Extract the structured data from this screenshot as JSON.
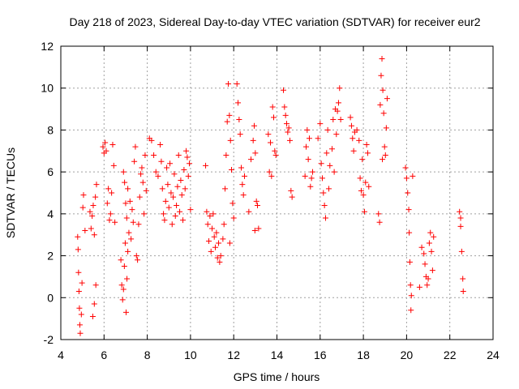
{
  "chart_data": {
    "type": "scatter",
    "title": "Day 218 of 2023, Sidereal Day-to-day VTEC variation (SDTVAR) for receiver eur2",
    "xlabel": "GPS time / hours",
    "ylabel": "SDTVAR / TECUs",
    "xlim": [
      4,
      24
    ],
    "ylim": [
      -2,
      12
    ],
    "xticks": [
      4,
      6,
      8,
      10,
      12,
      14,
      16,
      18,
      20,
      22,
      24
    ],
    "yticks": [
      -2,
      0,
      2,
      4,
      6,
      8,
      10,
      12
    ],
    "grid": true,
    "marker": "+",
    "color": "#ff0000",
    "series": [
      {
        "name": "SDTVAR",
        "points": [
          [
            4.78,
            2.9
          ],
          [
            4.8,
            2.3
          ],
          [
            4.82,
            1.2
          ],
          [
            4.84,
            0.3
          ],
          [
            4.86,
            -0.5
          ],
          [
            4.88,
            -1.3
          ],
          [
            4.9,
            -1.7
          ],
          [
            4.95,
            -0.8
          ],
          [
            4.98,
            0.7
          ],
          [
            5.02,
            4.3
          ],
          [
            5.05,
            4.9
          ],
          [
            5.12,
            3.2
          ],
          [
            5.35,
            4.1
          ],
          [
            5.4,
            3.3
          ],
          [
            5.45,
            3.9
          ],
          [
            5.5,
            4.4
          ],
          [
            5.55,
            3.0
          ],
          [
            5.6,
            4.8
          ],
          [
            5.65,
            5.4
          ],
          [
            5.48,
            -0.9
          ],
          [
            5.55,
            -0.3
          ],
          [
            5.62,
            0.6
          ],
          [
            5.95,
            7.2
          ],
          [
            6.0,
            6.9
          ],
          [
            6.05,
            7.4
          ],
          [
            6.1,
            7.0
          ],
          [
            6.15,
            4.5
          ],
          [
            6.2,
            5.2
          ],
          [
            6.25,
            3.7
          ],
          [
            6.3,
            4.0
          ],
          [
            6.35,
            5.0
          ],
          [
            6.4,
            7.3
          ],
          [
            6.45,
            6.3
          ],
          [
            6.5,
            3.6
          ],
          [
            6.78,
            1.8
          ],
          [
            6.82,
            0.6
          ],
          [
            6.86,
            -0.1
          ],
          [
            6.9,
            0.4
          ],
          [
            6.94,
            1.5
          ],
          [
            6.98,
            2.6
          ],
          [
            7.02,
            -0.7
          ],
          [
            7.06,
            0.9
          ],
          [
            7.1,
            2.2
          ],
          [
            6.9,
            6.0
          ],
          [
            6.95,
            5.5
          ],
          [
            7.0,
            4.5
          ],
          [
            7.05,
            3.8
          ],
          [
            7.1,
            5.2
          ],
          [
            7.15,
            3.1
          ],
          [
            7.2,
            4.6
          ],
          [
            7.25,
            2.8
          ],
          [
            7.3,
            4.2
          ],
          [
            7.35,
            3.6
          ],
          [
            7.4,
            6.5
          ],
          [
            7.45,
            7.2
          ],
          [
            7.5,
            2.0
          ],
          [
            7.55,
            1.8
          ],
          [
            7.6,
            3.5
          ],
          [
            7.65,
            4.8
          ],
          [
            7.7,
            5.9
          ],
          [
            7.75,
            6.2
          ],
          [
            7.8,
            5.5
          ],
          [
            7.85,
            4.0
          ],
          [
            7.9,
            6.8
          ],
          [
            7.95,
            5.1
          ],
          [
            8.1,
            7.6
          ],
          [
            8.2,
            7.5
          ],
          [
            8.3,
            6.8
          ],
          [
            8.4,
            6.0
          ],
          [
            8.5,
            5.8
          ],
          [
            8.6,
            7.3
          ],
          [
            8.65,
            6.5
          ],
          [
            8.7,
            5.2
          ],
          [
            8.75,
            4.0
          ],
          [
            8.8,
            3.7
          ],
          [
            8.85,
            4.6
          ],
          [
            8.9,
            6.2
          ],
          [
            8.95,
            5.4
          ],
          [
            9.0,
            4.3
          ],
          [
            9.05,
            6.4
          ],
          [
            9.1,
            5.0
          ],
          [
            9.15,
            3.5
          ],
          [
            9.2,
            4.8
          ],
          [
            9.25,
            5.9
          ],
          [
            9.3,
            3.9
          ],
          [
            9.35,
            4.4
          ],
          [
            9.4,
            5.3
          ],
          [
            9.45,
            6.8
          ],
          [
            9.5,
            4.1
          ],
          [
            9.55,
            5.6
          ],
          [
            9.6,
            4.9
          ],
          [
            9.65,
            3.7
          ],
          [
            9.7,
            6.1
          ],
          [
            9.75,
            5.2
          ],
          [
            9.8,
            7.0
          ],
          [
            9.85,
            6.7
          ],
          [
            9.9,
            5.8
          ],
          [
            9.95,
            6.4
          ],
          [
            10.0,
            4.2
          ],
          [
            10.7,
            6.3
          ],
          [
            10.75,
            4.1
          ],
          [
            10.8,
            3.5
          ],
          [
            10.85,
            2.7
          ],
          [
            10.9,
            3.9
          ],
          [
            10.95,
            2.2
          ],
          [
            11.0,
            3.3
          ],
          [
            11.05,
            4.0
          ],
          [
            11.1,
            2.9
          ],
          [
            11.15,
            2.4
          ],
          [
            11.2,
            3.1
          ],
          [
            11.25,
            1.9
          ],
          [
            11.3,
            2.6
          ],
          [
            11.35,
            1.7
          ],
          [
            11.4,
            2.0
          ],
          [
            11.5,
            2.8
          ],
          [
            11.55,
            3.5
          ],
          [
            11.6,
            5.2
          ],
          [
            11.65,
            6.8
          ],
          [
            11.7,
            8.4
          ],
          [
            11.75,
            10.2
          ],
          [
            11.8,
            8.7
          ],
          [
            11.85,
            7.5
          ],
          [
            11.9,
            6.1
          ],
          [
            11.95,
            4.5
          ],
          [
            12.0,
            3.8
          ],
          [
            11.82,
            2.6
          ],
          [
            12.15,
            10.2
          ],
          [
            12.2,
            9.3
          ],
          [
            12.25,
            8.5
          ],
          [
            12.3,
            7.8
          ],
          [
            12.35,
            6.2
          ],
          [
            12.4,
            5.4
          ],
          [
            12.45,
            4.9
          ],
          [
            12.5,
            5.8
          ],
          [
            12.7,
            4.1
          ],
          [
            12.8,
            6.6
          ],
          [
            12.9,
            7.5
          ],
          [
            12.95,
            8.2
          ],
          [
            13.0,
            6.9
          ],
          [
            13.05,
            4.6
          ],
          [
            13.1,
            4.4
          ],
          [
            13.15,
            3.3
          ],
          [
            12.98,
            3.2
          ],
          [
            13.6,
            7.8
          ],
          [
            13.65,
            6.0
          ],
          [
            13.7,
            7.4
          ],
          [
            13.75,
            5.8
          ],
          [
            13.8,
            9.1
          ],
          [
            13.85,
            8.6
          ],
          [
            13.9,
            7.0
          ],
          [
            13.95,
            6.8
          ],
          [
            14.3,
            9.9
          ],
          [
            14.35,
            9.1
          ],
          [
            14.4,
            8.7
          ],
          [
            14.45,
            8.3
          ],
          [
            14.5,
            7.9
          ],
          [
            14.55,
            8.1
          ],
          [
            14.6,
            7.5
          ],
          [
            14.65,
            5.1
          ],
          [
            14.7,
            4.8
          ],
          [
            15.3,
            5.8
          ],
          [
            15.35,
            7.2
          ],
          [
            15.4,
            8.0
          ],
          [
            15.45,
            6.6
          ],
          [
            15.5,
            7.6
          ],
          [
            15.55,
            5.3
          ],
          [
            15.6,
            5.7
          ],
          [
            15.65,
            6.0
          ],
          [
            15.9,
            7.6
          ],
          [
            16.0,
            8.3
          ],
          [
            16.05,
            6.4
          ],
          [
            16.1,
            5.7
          ],
          [
            16.15,
            5.0
          ],
          [
            16.2,
            4.4
          ],
          [
            16.25,
            3.8
          ],
          [
            16.3,
            6.9
          ],
          [
            16.35,
            8.0
          ],
          [
            16.4,
            5.2
          ],
          [
            16.45,
            6.3
          ],
          [
            16.55,
            7.1
          ],
          [
            16.6,
            8.5
          ],
          [
            16.65,
            6.0
          ],
          [
            16.7,
            9.0
          ],
          [
            16.75,
            7.8
          ],
          [
            16.8,
            8.9
          ],
          [
            16.85,
            9.3
          ],
          [
            16.9,
            10.0
          ],
          [
            16.95,
            8.5
          ],
          [
            17.4,
            8.6
          ],
          [
            17.45,
            8.2
          ],
          [
            17.5,
            7.6
          ],
          [
            17.55,
            7.0
          ],
          [
            17.6,
            7.9
          ],
          [
            17.7,
            8.0
          ],
          [
            17.8,
            7.5
          ],
          [
            17.85,
            5.7
          ],
          [
            17.9,
            5.1
          ],
          [
            17.95,
            6.6
          ],
          [
            18.0,
            4.9
          ],
          [
            18.05,
            4.1
          ],
          [
            18.1,
            5.5
          ],
          [
            18.15,
            7.3
          ],
          [
            18.2,
            6.9
          ],
          [
            18.25,
            5.3
          ],
          [
            18.7,
            4.0
          ],
          [
            18.75,
            3.6
          ],
          [
            18.78,
            9.2
          ],
          [
            18.82,
            10.6
          ],
          [
            18.86,
            11.4
          ],
          [
            18.9,
            9.9
          ],
          [
            18.94,
            8.8
          ],
          [
            18.98,
            7.2
          ],
          [
            19.02,
            6.8
          ],
          [
            19.06,
            8.1
          ],
          [
            19.1,
            9.5
          ],
          [
            18.88,
            6.6
          ],
          [
            19.95,
            6.2
          ],
          [
            20.0,
            5.7
          ],
          [
            20.05,
            5.0
          ],
          [
            20.1,
            4.2
          ],
          [
            20.12,
            3.1
          ],
          [
            20.15,
            1.7
          ],
          [
            20.18,
            0.6
          ],
          [
            20.2,
            -0.6
          ],
          [
            20.22,
            0.1
          ],
          [
            20.28,
            5.8
          ],
          [
            20.6,
            0.5
          ],
          [
            20.7,
            2.4
          ],
          [
            20.8,
            2.1
          ],
          [
            20.85,
            1.6
          ],
          [
            20.9,
            1.0
          ],
          [
            20.95,
            0.6
          ],
          [
            21.0,
            0.9
          ],
          [
            21.05,
            2.6
          ],
          [
            21.1,
            3.1
          ],
          [
            21.15,
            2.2
          ],
          [
            21.2,
            1.3
          ],
          [
            21.25,
            2.9
          ],
          [
            22.45,
            4.1
          ],
          [
            22.5,
            3.4
          ],
          [
            22.55,
            2.2
          ],
          [
            22.6,
            0.9
          ],
          [
            22.62,
            0.3
          ],
          [
            22.5,
            3.8
          ]
        ]
      }
    ]
  }
}
